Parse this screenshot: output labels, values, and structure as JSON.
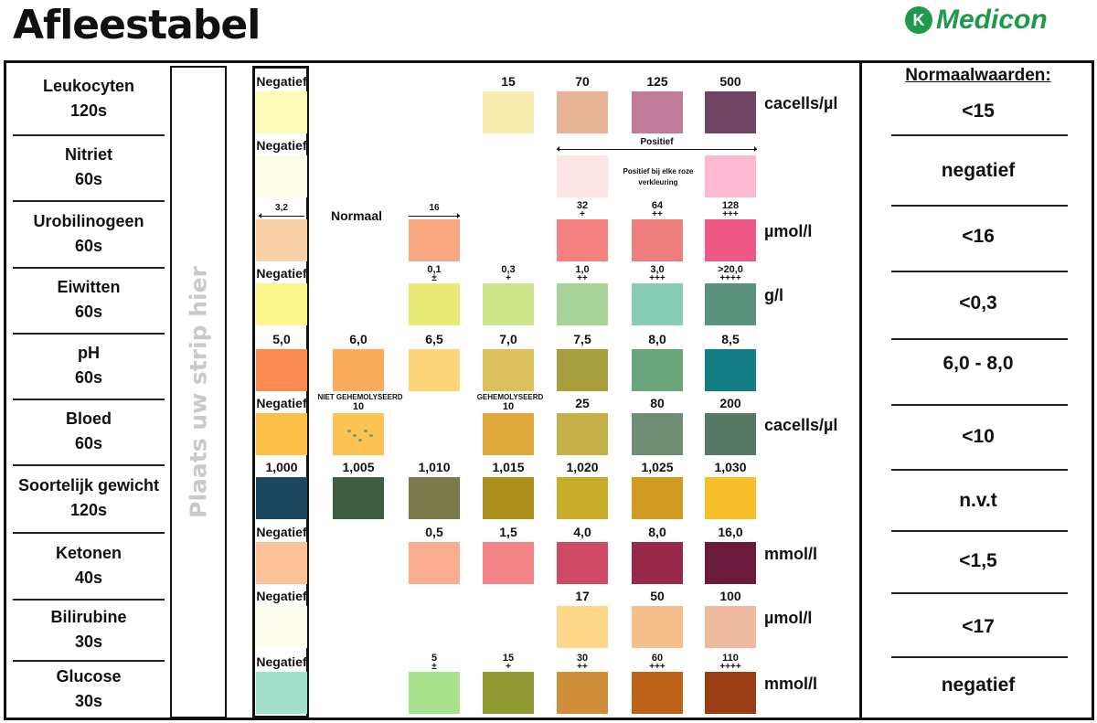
{
  "title": "Afleestabel",
  "logo": {
    "text": "Medicon",
    "mark": "K",
    "color": "#1f9a4a"
  },
  "strip_placeholder": "Plaats uw strip hier",
  "normal_header": "Normaalwaarden:",
  "annotations": {
    "normaal": "Normaal",
    "uro_arrow": "16",
    "strip_uro_arrow": "3,2",
    "positief": "Positief",
    "positief_note": "Positief bij elke roze verkleuring"
  },
  "rows": [
    {
      "name": "Leukocyten",
      "time": "120s",
      "strip": {
        "label": "Negatief",
        "color": "#fdfbb8"
      },
      "unit": "cacells/µl",
      "normal": "<15",
      "swatches": [
        {
          "col": 3,
          "label": "15",
          "color": "#f8ecae"
        },
        {
          "col": 4,
          "label": "70",
          "color": "#e8b498"
        },
        {
          "col": 5,
          "label": "125",
          "color": "#c07c98"
        },
        {
          "col": 6,
          "label": "500",
          "color": "#6f4563"
        }
      ]
    },
    {
      "name": "Nitriet",
      "time": "60s",
      "strip": {
        "label": "Negatief",
        "color": "#fefde8"
      },
      "unit": "",
      "normal": "negatief",
      "swatches": [
        {
          "col": 4,
          "label": "",
          "color": "#fde5e5"
        },
        {
          "col": 6,
          "label": "",
          "color": "#fbbad2"
        }
      ]
    },
    {
      "name": "Urobilinogeen",
      "time": "60s",
      "strip": {
        "label": "",
        "color": "#f9d3a7"
      },
      "unit": "µmol/l",
      "normal": "<16",
      "swatches": [
        {
          "col": 2,
          "label": "",
          "color": "#f8a982"
        },
        {
          "col": 4,
          "label": "32",
          "sub": "+",
          "color": "#f58080"
        },
        {
          "col": 5,
          "label": "64",
          "sub": "++",
          "color": "#ee7d7d"
        },
        {
          "col": 6,
          "label": "128",
          "sub": "+++",
          "color": "#ee5886"
        }
      ]
    },
    {
      "name": "Eiwitten",
      "time": "60s",
      "strip": {
        "label": "Negatief",
        "color": "#fcf68c"
      },
      "unit": "g/l",
      "normal": "<0,3",
      "swatches": [
        {
          "col": 2,
          "label": "0,1",
          "sub": "±",
          "color": "#e8ea78"
        },
        {
          "col": 3,
          "label": "0,3",
          "sub": "+",
          "color": "#cde48a"
        },
        {
          "col": 4,
          "label": "1,0",
          "sub": "++",
          "color": "#a8d49a"
        },
        {
          "col": 5,
          "label": "3,0",
          "sub": "+++",
          "color": "#87cdb6"
        },
        {
          "col": 6,
          "label": ">20,0",
          "sub": "++++",
          "color": "#5a927e"
        }
      ]
    },
    {
      "name": "pH",
      "time": "60s",
      "strip": {
        "label": "5,0",
        "color": "#f98a50"
      },
      "unit": "",
      "normal": "6,0 - 8,0",
      "swatches": [
        {
          "col": 1,
          "label": "6,0",
          "color": "#f9ac5a"
        },
        {
          "col": 2,
          "label": "6,5",
          "color": "#fdd67c"
        },
        {
          "col": 3,
          "label": "7,0",
          "color": "#dbc05e"
        },
        {
          "col": 4,
          "label": "7,5",
          "color": "#a79e3d"
        },
        {
          "col": 5,
          "label": "8,0",
          "color": "#6aa57c"
        },
        {
          "col": 6,
          "label": "8,5",
          "color": "#137f84"
        }
      ]
    },
    {
      "name": "Bloed",
      "time": "60s",
      "strip": {
        "label": "Negatief",
        "color": "#fcc048"
      },
      "unit": "cacells/µl",
      "normal": "<10",
      "swatches": [
        {
          "col": 1,
          "label": "10",
          "pre": "NIET GEHEMOLYSEERD",
          "color": "#fbc352"
        },
        {
          "col": 3,
          "label": "10",
          "pre": "GEHEMOLYSEERD",
          "color": "#e0a93e"
        },
        {
          "col": 4,
          "label": "25",
          "color": "#c6b04a"
        },
        {
          "col": 5,
          "label": "80",
          "color": "#6e8d72"
        },
        {
          "col": 6,
          "label": "200",
          "color": "#577865"
        }
      ]
    },
    {
      "name": "Soortelijk gewicht",
      "time": "120s",
      "strip": {
        "label": "1,000",
        "color": "#1d4660"
      },
      "unit": "",
      "normal": "n.v.t",
      "swatches": [
        {
          "col": 1,
          "label": "1,005",
          "color": "#3e5e44"
        },
        {
          "col": 2,
          "label": "1,010",
          "color": "#7a7a4c"
        },
        {
          "col": 3,
          "label": "1,015",
          "color": "#ad8f1e"
        },
        {
          "col": 4,
          "label": "1,020",
          "color": "#c8ad2a"
        },
        {
          "col": 5,
          "label": "1,025",
          "color": "#d29b24"
        },
        {
          "col": 6,
          "label": "1,030",
          "color": "#f6be28"
        }
      ]
    },
    {
      "name": "Ketonen",
      "time": "40s",
      "strip": {
        "label": "Negatief",
        "color": "#fdc197"
      },
      "unit": "mmol/l",
      "normal": "<1,5",
      "swatches": [
        {
          "col": 2,
          "label": "0,5",
          "color": "#fbae8f"
        },
        {
          "col": 3,
          "label": "1,5",
          "color": "#f48485"
        },
        {
          "col": 4,
          "label": "4,0",
          "color": "#cf4a66"
        },
        {
          "col": 5,
          "label": "8,0",
          "color": "#98284a"
        },
        {
          "col": 6,
          "label": "16,0",
          "color": "#6c1a3c"
        }
      ]
    },
    {
      "name": "Bilirubine",
      "time": "30s",
      "strip": {
        "label": "Negatief",
        "color": "#fefef0"
      },
      "unit": "µmol/l",
      "normal": "<17",
      "swatches": [
        {
          "col": 4,
          "label": "17",
          "color": "#fdd88a"
        },
        {
          "col": 5,
          "label": "50",
          "color": "#f6c08c"
        },
        {
          "col": 6,
          "label": "100",
          "color": "#eebba0"
        }
      ]
    },
    {
      "name": "Glucose",
      "time": "30s",
      "strip": {
        "label": "Negatief",
        "color": "#a2e0cc"
      },
      "unit": "mmol/l",
      "normal": "negatief",
      "swatches": [
        {
          "col": 2,
          "label": "5",
          "sub": "±",
          "color": "#a9e18c"
        },
        {
          "col": 3,
          "label": "15",
          "sub": "+",
          "color": "#8f9a34"
        },
        {
          "col": 4,
          "label": "30",
          "sub": "++",
          "color": "#cf8f3a"
        },
        {
          "col": 5,
          "label": "60",
          "sub": "+++",
          "color": "#bd6218"
        },
        {
          "col": 6,
          "label": "110",
          "sub": "++++",
          "color": "#9a3d14"
        }
      ]
    }
  ]
}
